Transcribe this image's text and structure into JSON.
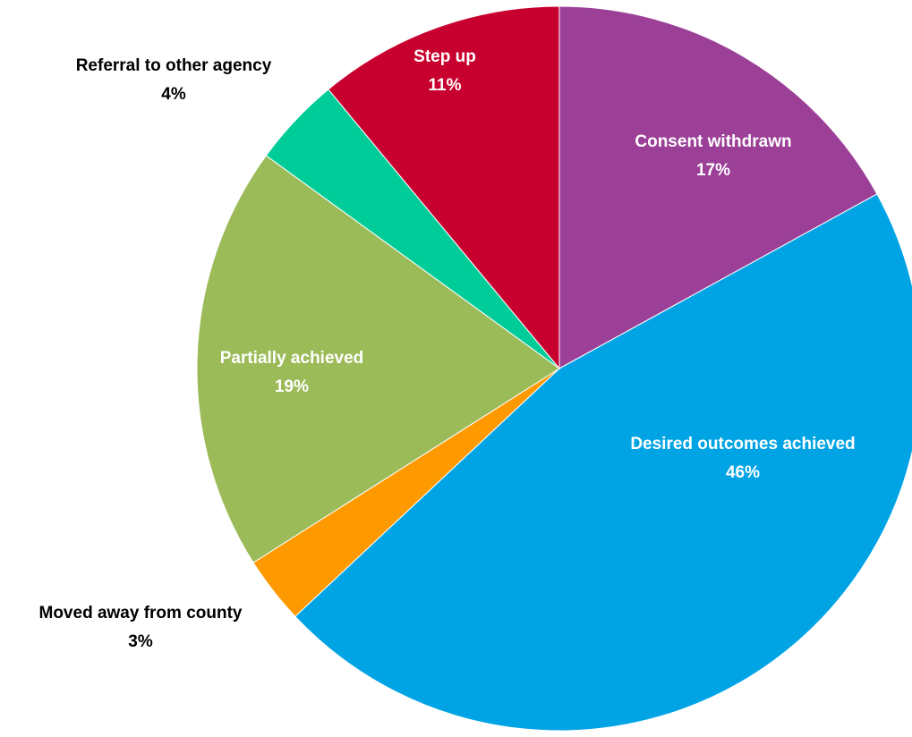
{
  "chart_data": {
    "type": "pie",
    "title": "",
    "start_angle_deg": 0,
    "direction": "clockwise",
    "slices": [
      {
        "label": "Consent withdrawn",
        "value": 17,
        "display": "17%",
        "color": "#9b3f97",
        "label_color": "#ffffff",
        "label_placement": "inside"
      },
      {
        "label": "Desired outcomes achieved",
        "value": 46,
        "display": "46%",
        "color": "#00a4e4",
        "label_color": "#ffffff",
        "label_placement": "inside"
      },
      {
        "label": "Moved away from county",
        "value": 3,
        "display": "3%",
        "color": "#ff9900",
        "label_color": "#000000",
        "label_placement": "outside"
      },
      {
        "label": "Partially achieved",
        "value": 19,
        "display": "19%",
        "color": "#9bbb59",
        "label_color": "#ffffff",
        "label_placement": "inside"
      },
      {
        "label": "Referral to other agency",
        "value": 4,
        "display": "4%",
        "color": "#00cc99",
        "label_color": "#000000",
        "label_placement": "outside"
      },
      {
        "label": "Step up",
        "value": 11,
        "display": "11%",
        "color": "#c8002f",
        "label_color": "#ffffff",
        "label_placement": "inside"
      }
    ]
  }
}
